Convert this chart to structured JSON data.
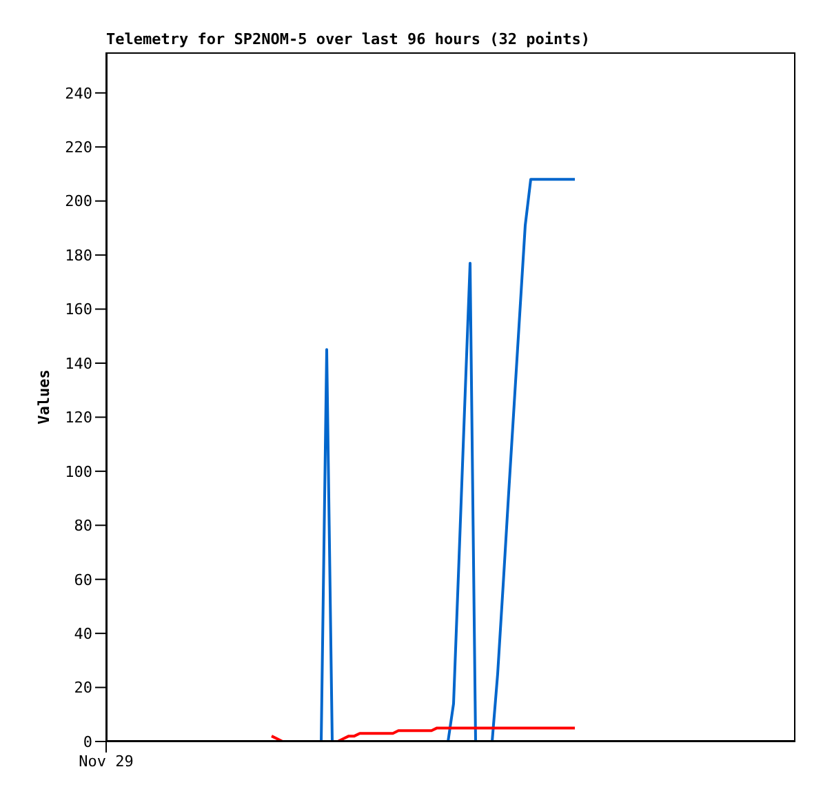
{
  "chart_data": {
    "type": "line",
    "title": "Telemetry for SP2NOM-5 over last 96 hours (32 points)",
    "ylabel": "Values",
    "categories": [
      "Nov 29",
      null,
      null,
      null,
      null,
      null,
      null,
      null,
      null,
      null,
      null,
      null,
      null,
      null,
      null,
      null,
      null,
      null,
      null,
      null,
      null,
      null,
      null,
      null,
      null,
      null,
      null,
      null,
      null,
      null,
      null,
      null,
      null,
      null,
      null,
      null,
      null,
      null,
      null,
      null,
      null,
      null,
      null,
      null,
      null,
      null,
      null,
      null,
      null,
      null,
      null,
      null,
      null,
      null,
      null,
      null,
      null,
      null,
      null,
      null,
      null,
      null,
      null,
      null,
      null,
      null,
      null,
      null,
      null,
      null,
      null,
      null,
      null,
      null,
      null,
      null,
      null,
      null,
      null,
      null,
      null,
      null,
      null,
      null,
      null,
      null,
      null,
      null,
      null,
      null,
      null,
      null,
      null,
      null,
      null,
      null,
      null,
      null,
      null,
      null,
      null,
      null,
      null,
      null,
      null,
      null,
      null,
      null,
      null,
      null,
      null,
      null,
      null,
      null,
      null,
      null,
      null,
      null,
      null,
      null,
      null,
      null,
      null,
      null,
      null,
      null
    ],
    "ylim": [
      0,
      255
    ],
    "yticks": [
      0,
      20,
      40,
      60,
      80,
      100,
      120,
      140,
      160,
      180,
      200,
      220,
      240
    ],
    "grid": false,
    "marker": "none",
    "line_style": "solid",
    "series": [
      {
        "color": "#0066cc",
        "values": [
          null,
          null,
          null,
          null,
          null,
          null,
          null,
          null,
          null,
          null,
          null,
          null,
          null,
          null,
          null,
          null,
          null,
          null,
          null,
          null,
          null,
          null,
          null,
          null,
          null,
          null,
          null,
          null,
          null,
          null,
          null,
          null,
          null,
          null,
          null,
          null,
          null,
          0,
          0,
          0,
          145,
          0,
          0,
          0,
          0,
          0,
          0,
          0,
          0,
          0,
          0,
          0,
          0,
          0,
          0,
          0,
          0,
          0,
          0,
          0,
          0,
          0,
          0,
          14,
          68,
          123,
          177,
          0,
          0,
          0,
          0,
          25,
          58,
          92,
          125,
          158,
          191,
          208,
          208,
          208,
          208,
          208,
          208,
          208,
          208,
          208,
          null,
          null,
          null,
          null,
          null,
          null,
          null,
          null,
          null,
          null,
          null,
          null,
          null,
          null,
          null,
          null,
          null,
          null,
          null,
          null,
          null,
          null,
          null,
          null,
          null,
          null,
          null,
          null,
          null,
          null,
          null,
          null,
          null,
          null,
          null,
          null,
          null,
          null,
          null,
          null
        ]
      },
      {
        "color": "#ff0000",
        "values": [
          null,
          null,
          null,
          null,
          null,
          null,
          null,
          null,
          null,
          null,
          null,
          null,
          null,
          null,
          null,
          null,
          null,
          null,
          null,
          null,
          null,
          null,
          null,
          null,
          null,
          null,
          null,
          null,
          null,
          null,
          2,
          1,
          0,
          0,
          0,
          0,
          0,
          0,
          0,
          0,
          0,
          0,
          0,
          1,
          2,
          2,
          3,
          3,
          3,
          3,
          3,
          3,
          3,
          4,
          4,
          4,
          4,
          4,
          4,
          4,
          5,
          5,
          5,
          5,
          5,
          5,
          5,
          5,
          5,
          5,
          5,
          5,
          5,
          5,
          5,
          5,
          5,
          5,
          5,
          5,
          5,
          5,
          5,
          5,
          5,
          5,
          null,
          null,
          null,
          null,
          null,
          null,
          null,
          null,
          null,
          null,
          null,
          null,
          null,
          null,
          null,
          null,
          null,
          null,
          null,
          null,
          null,
          null,
          null,
          null,
          null,
          null,
          null,
          null,
          null,
          null,
          null,
          null,
          null,
          null,
          null,
          null,
          null,
          null,
          null,
          null
        ]
      },
      {
        "color": "#000000",
        "values": [
          null,
          null,
          null,
          null,
          null,
          null,
          null,
          null,
          null,
          null,
          null,
          null,
          null,
          null,
          null,
          null,
          null,
          null,
          null,
          null,
          null,
          null,
          null,
          null,
          null,
          null,
          null,
          null,
          null,
          null,
          0,
          0,
          0,
          0,
          0,
          0,
          0,
          0,
          0,
          0,
          0,
          0,
          0,
          0,
          0,
          0,
          0,
          0,
          0,
          0,
          0,
          0,
          0,
          0,
          0,
          0,
          0,
          0,
          0,
          0,
          0,
          0,
          0,
          0,
          0,
          0,
          0,
          0,
          0,
          0,
          0,
          0,
          0,
          0,
          0,
          0,
          0,
          0,
          0,
          0,
          0,
          0,
          0,
          0,
          0,
          0,
          null,
          null,
          null,
          null,
          null,
          null,
          null,
          null,
          null,
          null,
          null,
          null,
          null,
          null,
          null,
          null,
          null,
          null,
          null,
          null,
          null,
          null,
          null,
          null,
          null,
          null,
          null,
          null,
          null,
          null,
          null,
          null,
          null,
          null,
          null,
          null,
          null,
          null,
          null,
          null
        ]
      }
    ]
  }
}
